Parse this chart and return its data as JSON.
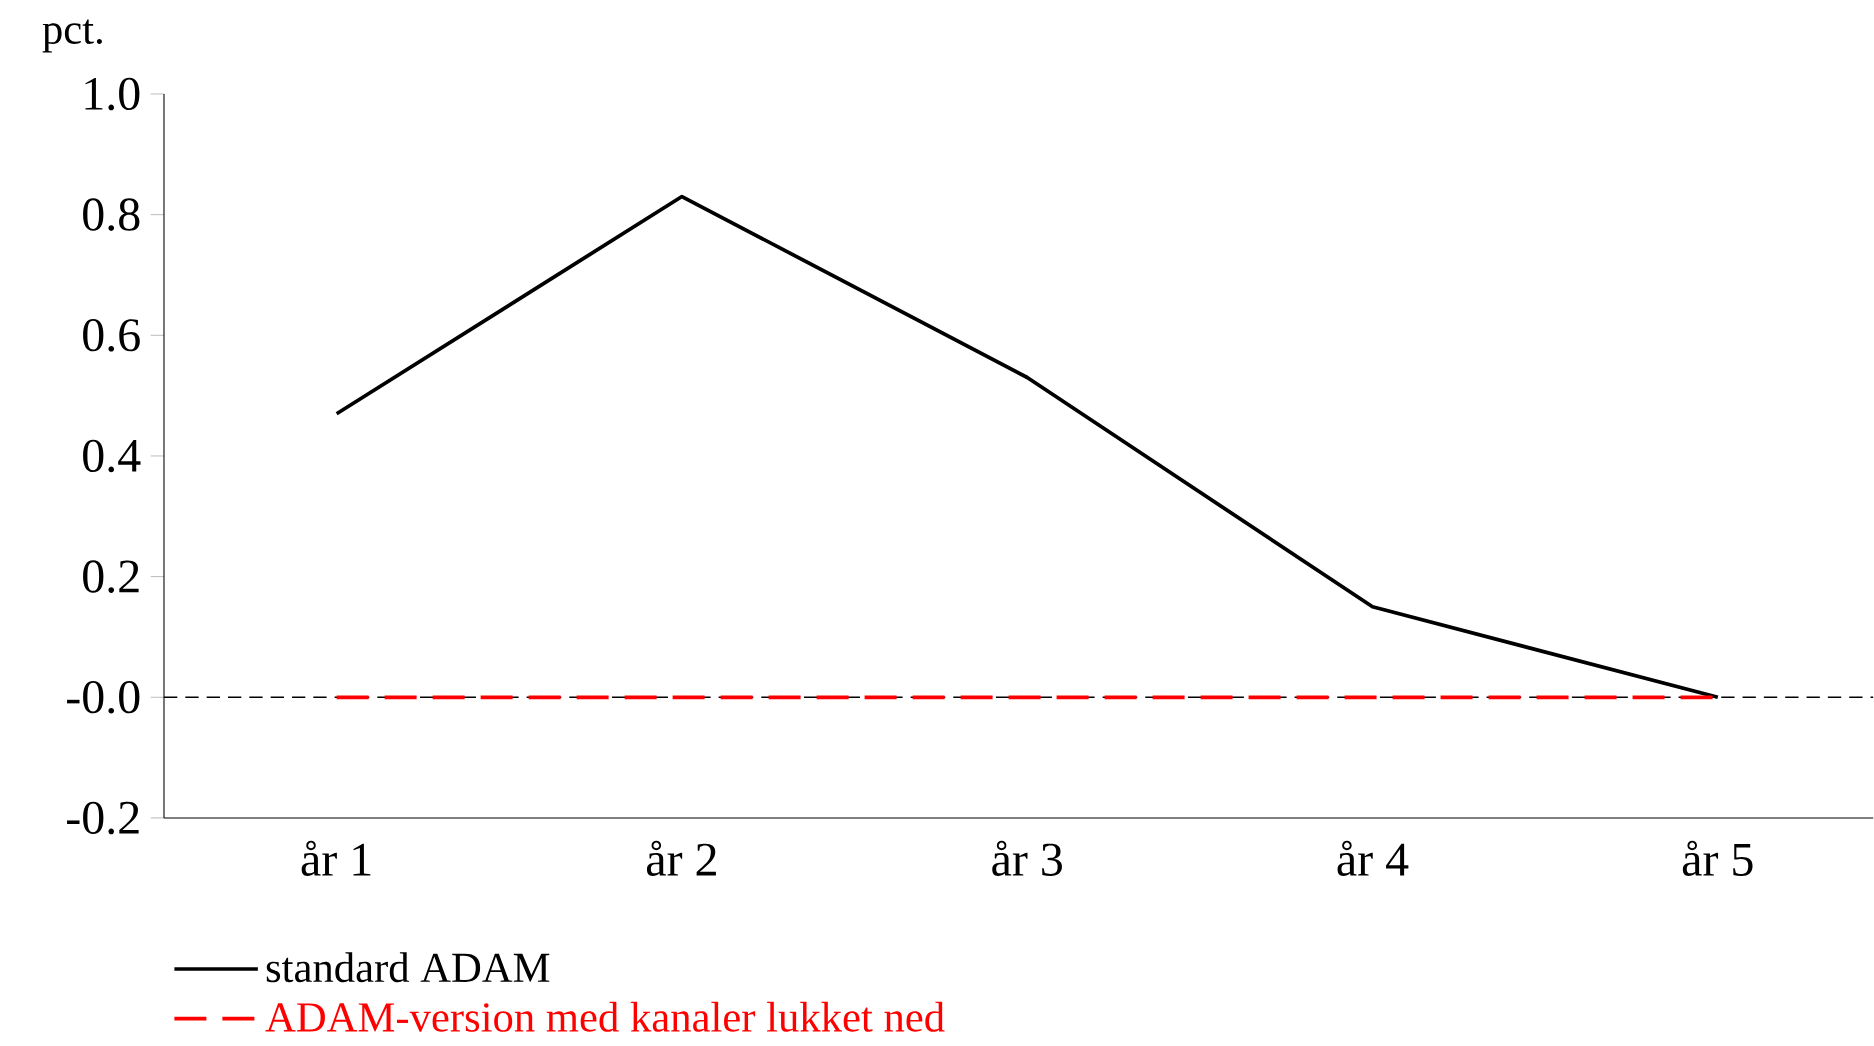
{
  "chart_data": {
    "type": "line",
    "ylabel": "pct.",
    "categories": [
      "år 1",
      "år 2",
      "år 3",
      "år 4",
      "år 5"
    ],
    "series": [
      {
        "name": "standard ADAM",
        "color": "#000000",
        "line_style": "solid",
        "values": [
          0.47,
          0.83,
          0.53,
          0.15,
          0.0
        ]
      },
      {
        "name": "ADAM-version med kanaler lukket ned",
        "color": "#ff0000",
        "line_style": "dashed",
        "values": [
          0.0,
          0.0,
          0.0,
          0.0,
          0.0
        ]
      }
    ],
    "ylim": [
      -0.2,
      1.0
    ],
    "yticks": [
      -0.2,
      {
        "value": 0,
        "label": "-0.0"
      },
      0.2,
      0.4,
      0.6,
      0.8,
      {
        "value": 1,
        "label": "1.0"
      }
    ],
    "ref_lines": [
      {
        "axis": "y",
        "value": 0,
        "color": "#000000",
        "line_style": "dashed"
      }
    ],
    "grid": false,
    "legend": "bottom",
    "marker": "none"
  }
}
